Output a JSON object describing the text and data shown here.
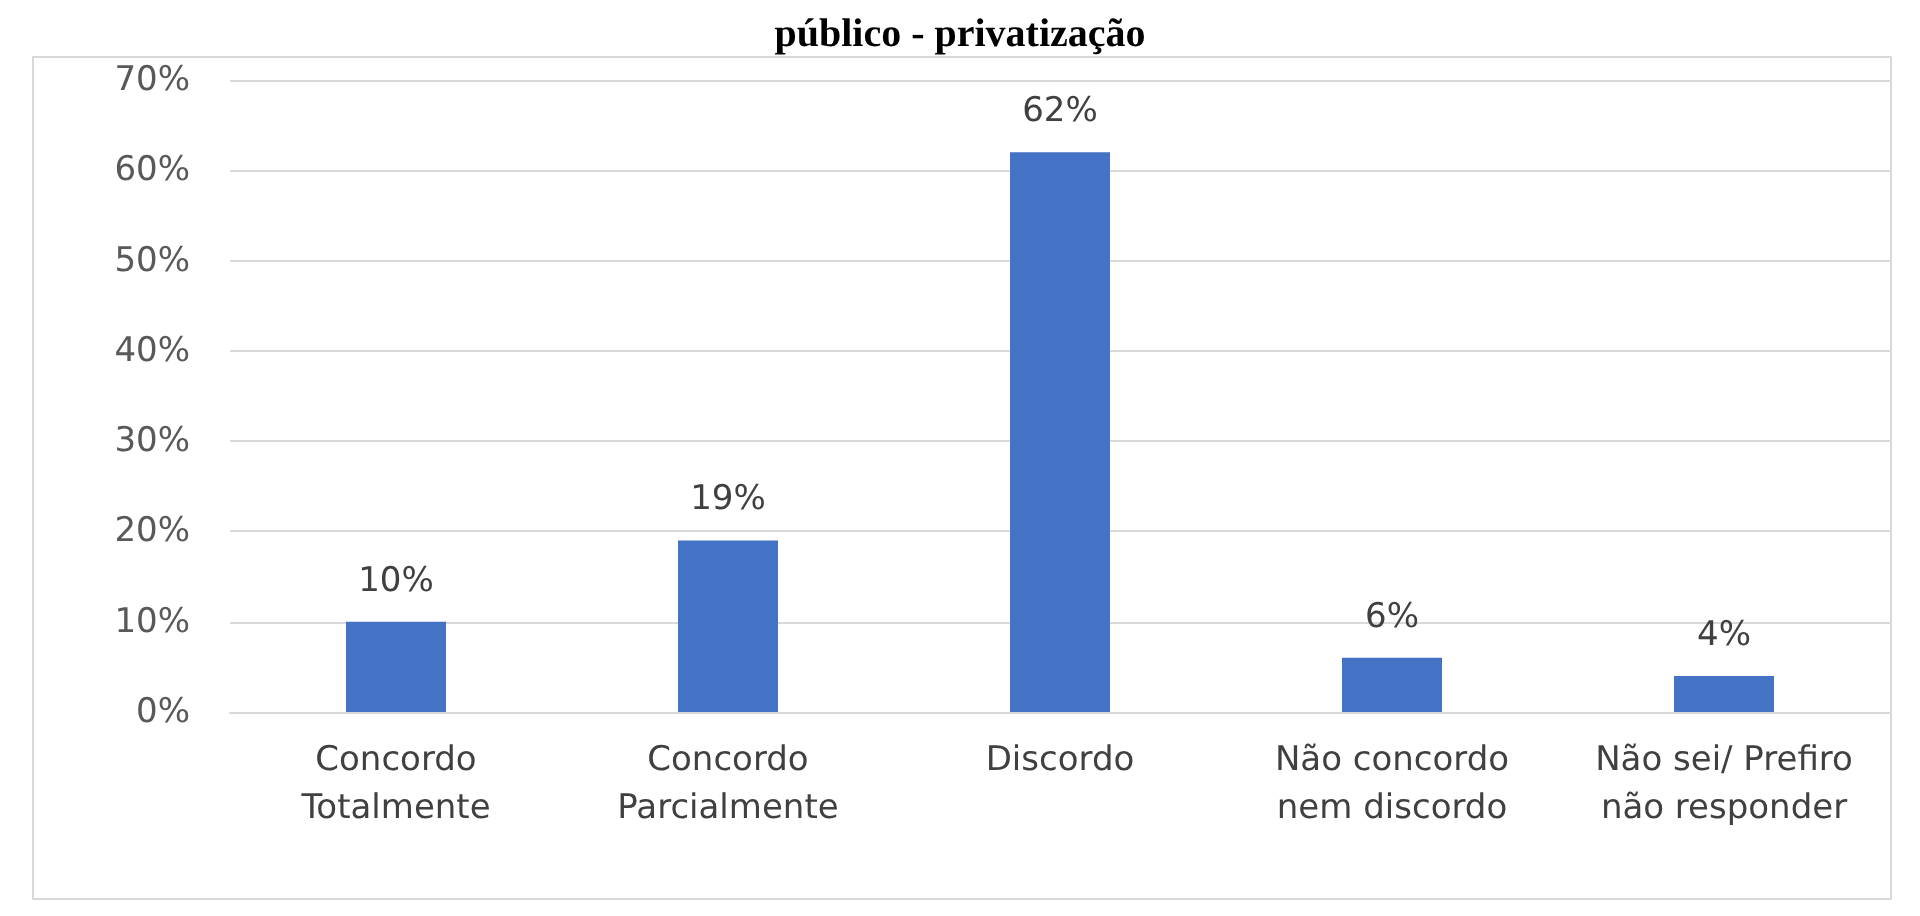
{
  "chart_data": {
    "type": "bar",
    "title": "público - privatização",
    "categories": [
      "Concordo\nTotalmente",
      "Concordo\nParcialmente",
      "Discordo",
      "Não concordo\nnem discordo",
      "Não sei/ Prefiro\nnão responder"
    ],
    "values": [
      10,
      19,
      62,
      6,
      4
    ],
    "value_labels": [
      "10%",
      "19%",
      "62%",
      "6%",
      "4%"
    ],
    "color": "#4472c4",
    "ylim": [
      0,
      70
    ],
    "yticks": [
      {
        "value": 0,
        "label": "0%"
      },
      {
        "value": 10,
        "label": "10%"
      },
      {
        "value": 20,
        "label": "20%"
      },
      {
        "value": 30,
        "label": "30%"
      },
      {
        "value": 40,
        "label": "40%"
      },
      {
        "value": 50,
        "label": "50%"
      },
      {
        "value": 60,
        "label": "60%"
      },
      {
        "value": 70,
        "label": "70%"
      }
    ],
    "grid": "y"
  }
}
